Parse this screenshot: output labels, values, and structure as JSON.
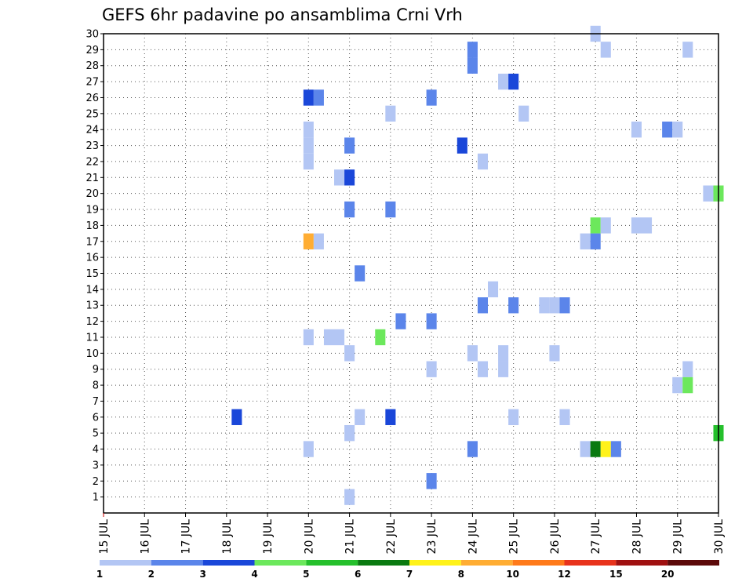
{
  "chart_data": {
    "type": "heatmap",
    "title": "GEFS 6hr padavine po ansamblima Crni Vrh",
    "xlabel": "",
    "ylabel": "",
    "x_labels": [
      "15 JUL",
      "16 JUL",
      "17 JUL",
      "18 JUL",
      "19 JUL",
      "20 JUL",
      "21 JUL",
      "22 JUL",
      "23 JUL",
      "24 JUL",
      "25 JUL",
      "26 JUL",
      "27 JUL",
      "28 JUL",
      "29 JUL",
      "30 JUL"
    ],
    "x_range": [
      15,
      30
    ],
    "y_range": [
      0,
      30
    ],
    "y_ticks": [
      1,
      2,
      3,
      4,
      5,
      6,
      7,
      8,
      9,
      10,
      11,
      12,
      13,
      14,
      15,
      16,
      17,
      18,
      19,
      20,
      21,
      22,
      23,
      24,
      25,
      26,
      27,
      28,
      29,
      30
    ],
    "grid": true,
    "colorbar": {
      "boundaries": [
        "1",
        "2",
        "3",
        "4",
        "5",
        "6",
        "7",
        "8",
        "10",
        "12",
        "15",
        "20"
      ],
      "colors": [
        "#b3c6f4",
        "#5b85ea",
        "#1a47d9",
        "#6ce85c",
        "#25c02c",
        "#0a7a10",
        "#fff21a",
        "#ffad33",
        "#ff7a1a",
        "#e8331c",
        "#a01010",
        "#5c0a0a"
      ],
      "tick_labels": [
        "1",
        "2",
        "3",
        "4",
        "5",
        "6",
        "7",
        "8",
        "10",
        "12",
        "15",
        "20"
      ]
    },
    "cells": [
      [
        27,
        30,
        1
      ],
      [
        29.25,
        29,
        1
      ],
      [
        27.25,
        29,
        1
      ],
      [
        24,
        29,
        2
      ],
      [
        24,
        28,
        2
      ],
      [
        24.75,
        27,
        1
      ],
      [
        25,
        27,
        3
      ],
      [
        20,
        26,
        3
      ],
      [
        20.25,
        26,
        2
      ],
      [
        23,
        26,
        2
      ],
      [
        22,
        25,
        1
      ],
      [
        25.25,
        25,
        1
      ],
      [
        20,
        24,
        1
      ],
      [
        28,
        24,
        1
      ],
      [
        28.75,
        24,
        2
      ],
      [
        29,
        24,
        1
      ],
      [
        20,
        23,
        1
      ],
      [
        21,
        23,
        2
      ],
      [
        23.75,
        23,
        3
      ],
      [
        20,
        22,
        1
      ],
      [
        24.25,
        22,
        1
      ],
      [
        20.75,
        21,
        1
      ],
      [
        21,
        21,
        3
      ],
      [
        29.75,
        20,
        1
      ],
      [
        30,
        20,
        4
      ],
      [
        21,
        19,
        2
      ],
      [
        22,
        19,
        2
      ],
      [
        27,
        18,
        4
      ],
      [
        27.25,
        18,
        1
      ],
      [
        28,
        18,
        1
      ],
      [
        28.25,
        18,
        1
      ],
      [
        20,
        17,
        8
      ],
      [
        20.25,
        17,
        1
      ],
      [
        26.75,
        17,
        1
      ],
      [
        27,
        17,
        2
      ],
      [
        21.25,
        15,
        2
      ],
      [
        24.5,
        14,
        1
      ],
      [
        24.25,
        13,
        2
      ],
      [
        25,
        13,
        2
      ],
      [
        25.75,
        13,
        1
      ],
      [
        26,
        13,
        1
      ],
      [
        26.25,
        13,
        2
      ],
      [
        22.25,
        12,
        2
      ],
      [
        23,
        12,
        2
      ],
      [
        20,
        11,
        1
      ],
      [
        20.5,
        11,
        1
      ],
      [
        20.75,
        11,
        1
      ],
      [
        21.75,
        11,
        4
      ],
      [
        21,
        10,
        1
      ],
      [
        24,
        10,
        1
      ],
      [
        24.75,
        10,
        1
      ],
      [
        26,
        10,
        1
      ],
      [
        23,
        9,
        1
      ],
      [
        24.25,
        9,
        1
      ],
      [
        24.75,
        9,
        1
      ],
      [
        29.25,
        9,
        1
      ],
      [
        29,
        8,
        1
      ],
      [
        29.25,
        8,
        4
      ],
      [
        18.25,
        6,
        3
      ],
      [
        21.25,
        6,
        1
      ],
      [
        22,
        6,
        3
      ],
      [
        25,
        6,
        1
      ],
      [
        26.25,
        6,
        1
      ],
      [
        21,
        5,
        1
      ],
      [
        30,
        5,
        5
      ],
      [
        20,
        4,
        1
      ],
      [
        24,
        4,
        2
      ],
      [
        26.75,
        4,
        1
      ],
      [
        27,
        4,
        6
      ],
      [
        27.25,
        4,
        7
      ],
      [
        27.5,
        4,
        2
      ],
      [
        23,
        2,
        2
      ],
      [
        21,
        1,
        1
      ]
    ]
  }
}
